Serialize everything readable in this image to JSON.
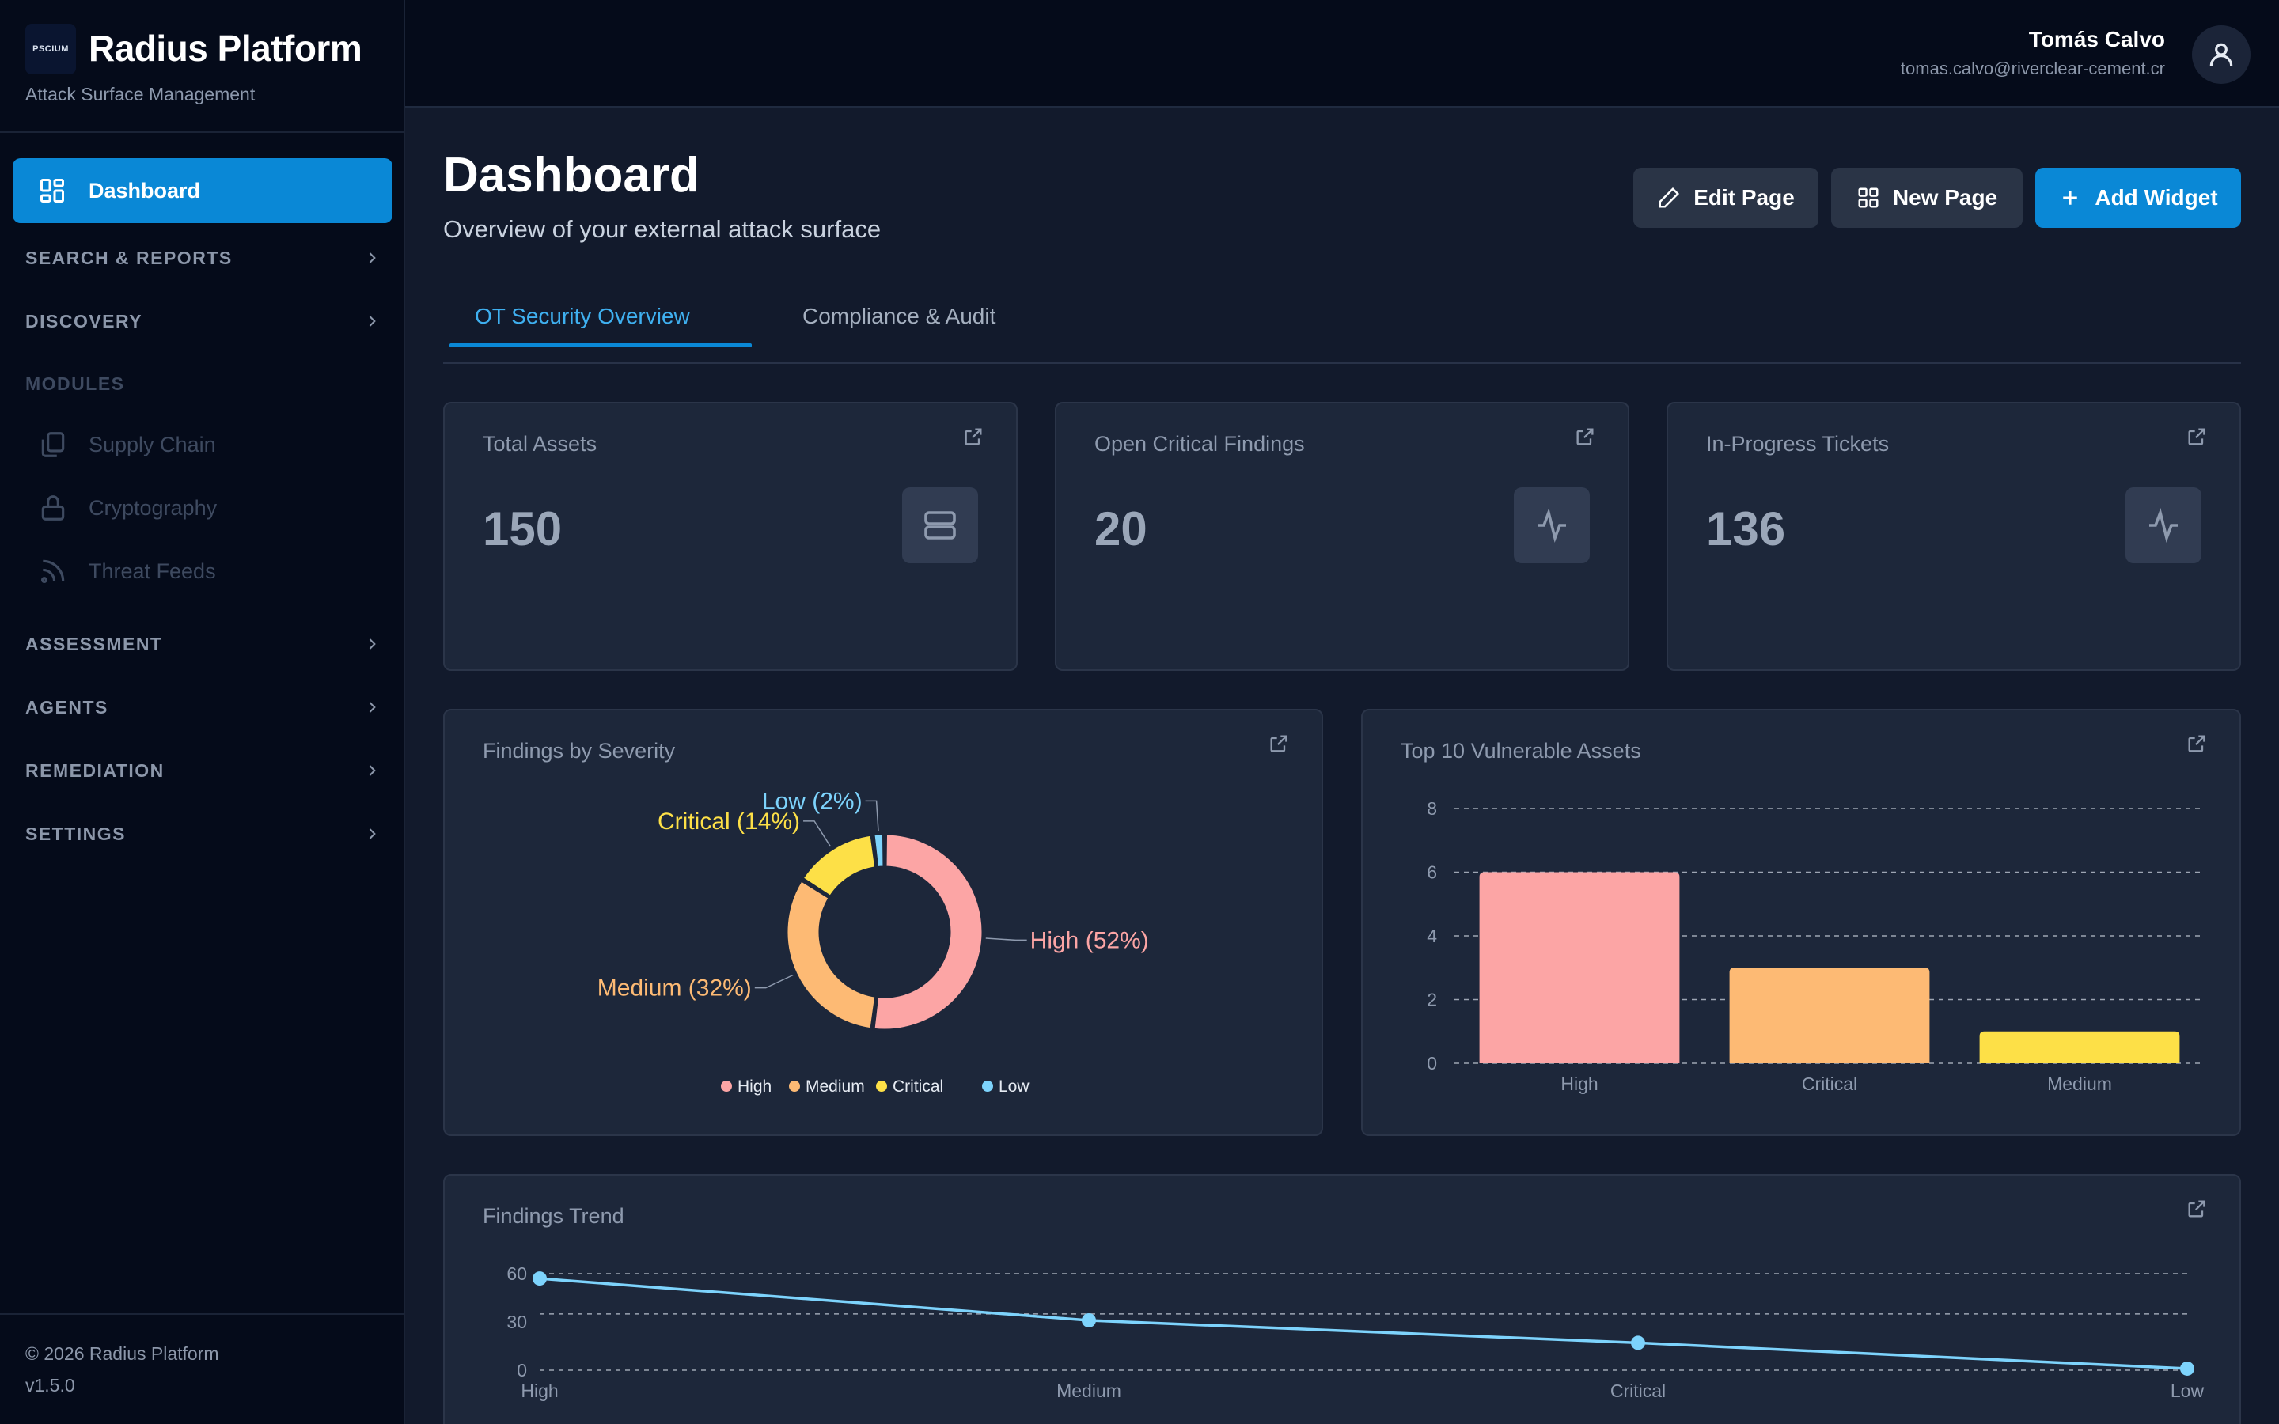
{
  "brand": {
    "logo_text": "PSCIUM",
    "name": "Radius Platform",
    "subtitle": "Attack Surface Management"
  },
  "sidebar": {
    "active": {
      "label": "Dashboard",
      "icon": "grid-icon"
    },
    "sections": [
      {
        "label": "SEARCH & REPORTS"
      },
      {
        "label": "DISCOVERY"
      }
    ],
    "modules_heading": "MODULES",
    "modules": [
      {
        "label": "Supply Chain",
        "icon": "copy-icon"
      },
      {
        "label": "Cryptography",
        "icon": "lock-icon"
      },
      {
        "label": "Threat Feeds",
        "icon": "rss-icon"
      }
    ],
    "sections2": [
      {
        "label": "ASSESSMENT"
      },
      {
        "label": "AGENTS"
      },
      {
        "label": "REMEDIATION"
      },
      {
        "label": "SETTINGS"
      }
    ],
    "footer": {
      "copyright": "© 2026 Radius Platform",
      "version": "v1.5.0"
    }
  },
  "user": {
    "name": "Tomás Calvo",
    "email": "tomas.calvo@riverclear-cement.cr"
  },
  "header": {
    "title": "Dashboard",
    "subtitle": "Overview of your external attack surface",
    "buttons": {
      "edit": "Edit Page",
      "new": "New Page",
      "add": "Add Widget"
    }
  },
  "tabs": [
    {
      "label": "OT Security Overview",
      "active": true
    },
    {
      "label": "Compliance & Audit",
      "active": false
    }
  ],
  "stats": [
    {
      "title": "Total Assets",
      "value": "150",
      "icon": "server-icon"
    },
    {
      "title": "Open Critical Findings",
      "value": "20",
      "icon": "activity-icon"
    },
    {
      "title": "In-Progress Tickets",
      "value": "136",
      "icon": "activity-icon"
    }
  ],
  "colors": {
    "high": "#fca5a5",
    "medium": "#fdba74",
    "critical": "#fde047",
    "low": "#7dd3fc",
    "accent": "#0a88d6"
  },
  "widgets": {
    "severity": {
      "title": "Findings by Severity"
    },
    "top_assets": {
      "title": "Top 10 Vulnerable Assets"
    },
    "trend": {
      "title": "Findings Trend"
    }
  },
  "chart_data": [
    {
      "type": "pie",
      "title": "Findings by Severity",
      "categories": [
        "High",
        "Medium",
        "Critical",
        "Low"
      ],
      "values": [
        52,
        32,
        14,
        2
      ],
      "labels": [
        "High (52%)",
        "Medium (32%)",
        "Critical (14%)",
        "Low (2%)"
      ],
      "legend": "bottom"
    },
    {
      "type": "bar",
      "title": "Top 10 Vulnerable Assets",
      "categories": [
        "High",
        "Critical",
        "Medium"
      ],
      "values": [
        6,
        3,
        1
      ],
      "ylim": [
        0,
        8
      ],
      "yticks": [
        0,
        2,
        4,
        6,
        8
      ],
      "grid": true
    },
    {
      "type": "line",
      "title": "Findings Trend",
      "categories": [
        "High",
        "Medium",
        "Critical",
        "Low"
      ],
      "values": [
        57,
        31,
        17,
        1
      ],
      "yticks": [
        0,
        30,
        60
      ],
      "grid": true
    }
  ]
}
